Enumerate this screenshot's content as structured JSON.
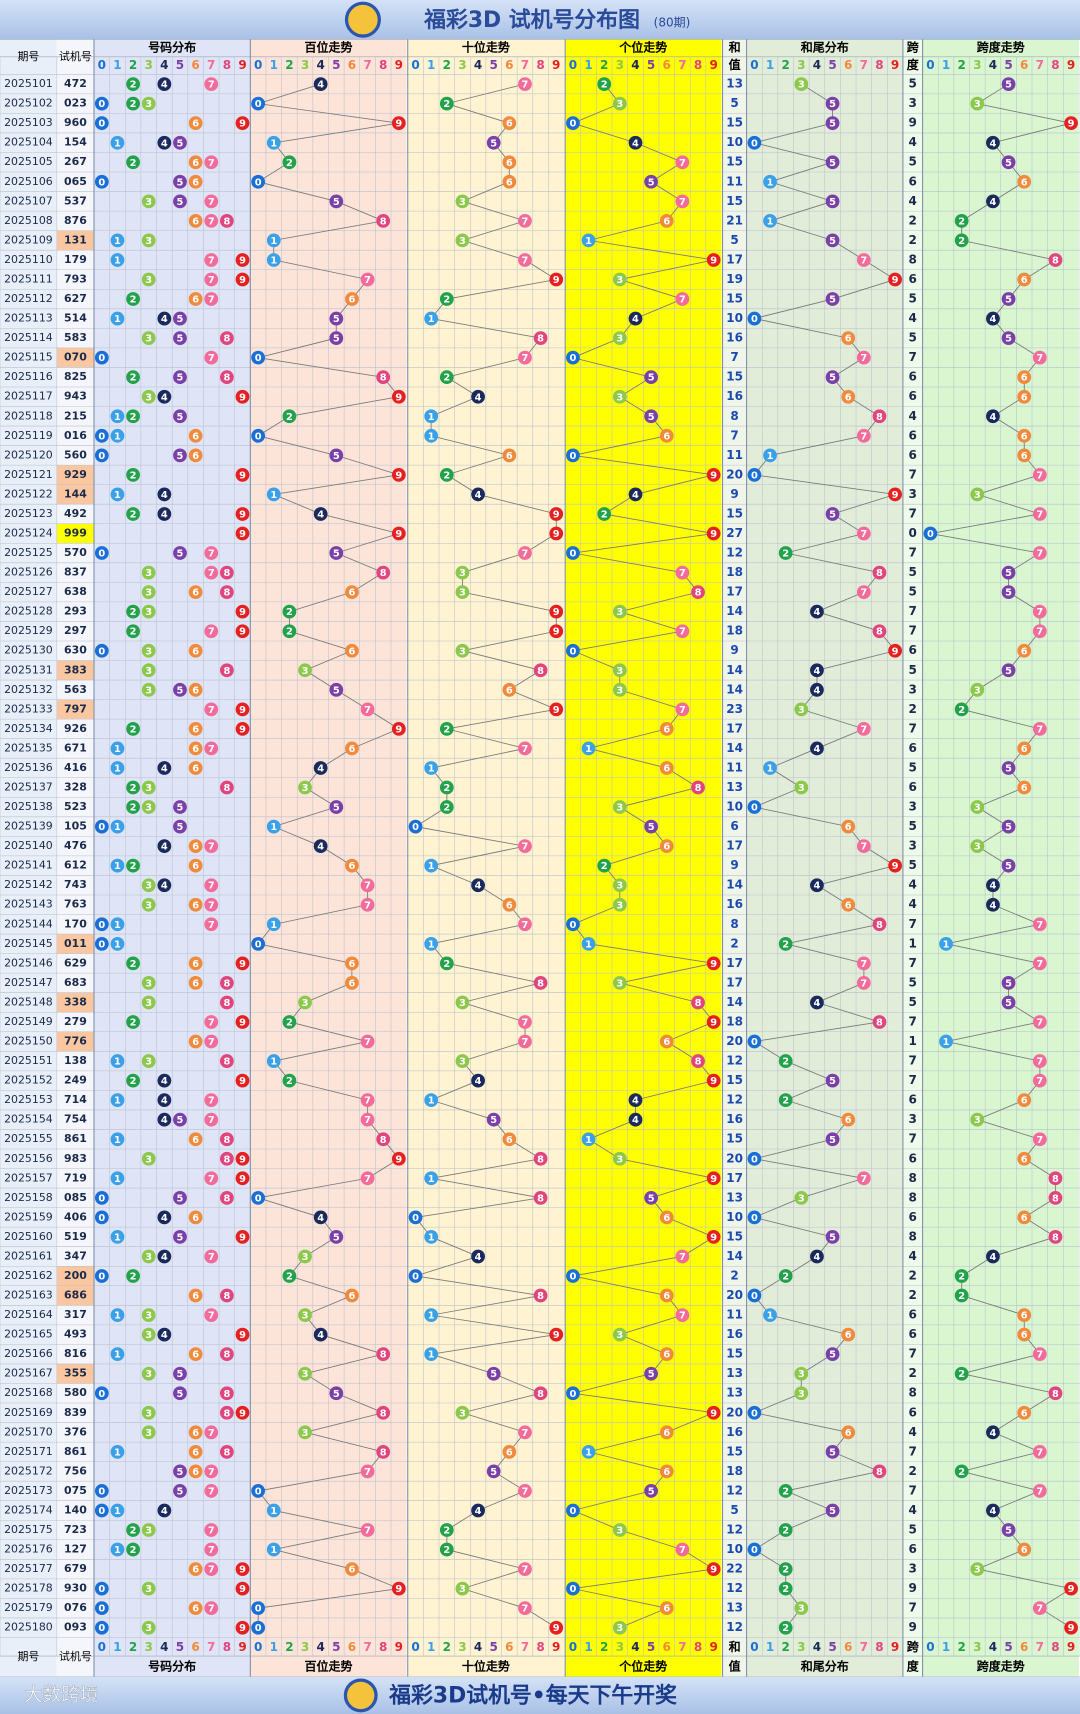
{
  "title": "福彩3D 试机号分布图",
  "subtitle": "(80期)",
  "columns": {
    "period": "期号",
    "number": "试机号",
    "groups": [
      "号码分布",
      "百位走势",
      "十位走势",
      "个位走势",
      "和尾分布",
      "跨度走势"
    ],
    "sum": [
      "和",
      "值"
    ],
    "span": [
      "跨",
      "度"
    ],
    "digits": [
      0,
      1,
      2,
      3,
      4,
      5,
      6,
      7,
      8,
      9
    ]
  },
  "digit_colors": [
    "#1a6fd6",
    "#3aa0e8",
    "#22a24a",
    "#8cc84b",
    "#1b2a5c",
    "#7b3fa8",
    "#f08a3c",
    "#f26b9a",
    "#e0457e",
    "#e52020"
  ],
  "rows": [
    [
      "2025101",
      "472",
      13,
      5
    ],
    [
      "2025102",
      "023",
      5,
      3
    ],
    [
      "2025103",
      "960",
      15,
      9
    ],
    [
      "2025104",
      "154",
      10,
      4
    ],
    [
      "2025105",
      "267",
      15,
      5
    ],
    [
      "2025106",
      "065",
      11,
      6
    ],
    [
      "2025107",
      "537",
      15,
      4
    ],
    [
      "2025108",
      "876",
      21,
      2
    ],
    [
      "2025109",
      "131",
      5,
      2
    ],
    [
      "2025110",
      "179",
      17,
      8
    ],
    [
      "2025111",
      "793",
      19,
      6
    ],
    [
      "2025112",
      "627",
      15,
      5
    ],
    [
      "2025113",
      "514",
      10,
      4
    ],
    [
      "2025114",
      "583",
      16,
      5
    ],
    [
      "2025115",
      "070",
      7,
      7
    ],
    [
      "2025116",
      "825",
      15,
      6
    ],
    [
      "2025117",
      "943",
      16,
      6
    ],
    [
      "2025118",
      "215",
      8,
      4
    ],
    [
      "2025119",
      "016",
      7,
      6
    ],
    [
      "2025120",
      "560",
      11,
      6
    ],
    [
      "2025121",
      "929",
      20,
      7
    ],
    [
      "2025122",
      "144",
      9,
      3
    ],
    [
      "2025123",
      "492",
      15,
      7
    ],
    [
      "2025124",
      "999",
      27,
      0
    ],
    [
      "2025125",
      "570",
      12,
      7
    ],
    [
      "2025126",
      "837",
      18,
      5
    ],
    [
      "2025127",
      "638",
      17,
      5
    ],
    [
      "2025128",
      "293",
      14,
      7
    ],
    [
      "2025129",
      "297",
      18,
      7
    ],
    [
      "2025130",
      "630",
      9,
      6
    ],
    [
      "2025131",
      "383",
      14,
      5
    ],
    [
      "2025132",
      "563",
      14,
      3
    ],
    [
      "2025133",
      "797",
      23,
      2
    ],
    [
      "2025134",
      "926",
      17,
      7
    ],
    [
      "2025135",
      "671",
      14,
      6
    ],
    [
      "2025136",
      "416",
      11,
      5
    ],
    [
      "2025137",
      "328",
      13,
      6
    ],
    [
      "2025138",
      "523",
      10,
      3
    ],
    [
      "2025139",
      "105",
      6,
      5
    ],
    [
      "2025140",
      "476",
      17,
      3
    ],
    [
      "2025141",
      "612",
      9,
      5
    ],
    [
      "2025142",
      "743",
      14,
      4
    ],
    [
      "2025143",
      "763",
      16,
      4
    ],
    [
      "2025144",
      "170",
      8,
      7
    ],
    [
      "2025145",
      "011",
      2,
      1
    ],
    [
      "2025146",
      "629",
      17,
      7
    ],
    [
      "2025147",
      "683",
      17,
      5
    ],
    [
      "2025148",
      "338",
      14,
      5
    ],
    [
      "2025149",
      "279",
      18,
      7
    ],
    [
      "2025150",
      "776",
      20,
      1
    ],
    [
      "2025151",
      "138",
      12,
      7
    ],
    [
      "2025152",
      "249",
      15,
      7
    ],
    [
      "2025153",
      "714",
      12,
      6
    ],
    [
      "2025154",
      "754",
      16,
      3
    ],
    [
      "2025155",
      "861",
      15,
      7
    ],
    [
      "2025156",
      "983",
      20,
      6
    ],
    [
      "2025157",
      "719",
      17,
      8
    ],
    [
      "2025158",
      "085",
      13,
      8
    ],
    [
      "2025159",
      "406",
      10,
      6
    ],
    [
      "2025160",
      "519",
      15,
      8
    ],
    [
      "2025161",
      "347",
      14,
      4
    ],
    [
      "2025162",
      "200",
      2,
      2
    ],
    [
      "2025163",
      "686",
      20,
      2
    ],
    [
      "2025164",
      "317",
      11,
      6
    ],
    [
      "2025165",
      "493",
      16,
      6
    ],
    [
      "2025166",
      "816",
      15,
      7
    ],
    [
      "2025167",
      "355",
      13,
      2
    ],
    [
      "2025168",
      "580",
      13,
      8
    ],
    [
      "2025169",
      "839",
      20,
      6
    ],
    [
      "2025170",
      "376",
      16,
      4
    ],
    [
      "2025171",
      "861",
      15,
      7
    ],
    [
      "2025172",
      "756",
      18,
      2
    ],
    [
      "2025173",
      "075",
      12,
      7
    ],
    [
      "2025174",
      "140",
      5,
      4
    ],
    [
      "2025175",
      "723",
      12,
      5
    ],
    [
      "2025176",
      "127",
      10,
      6
    ],
    [
      "2025177",
      "679",
      22,
      3
    ],
    [
      "2025178",
      "930",
      12,
      9
    ],
    [
      "2025179",
      "076",
      13,
      7
    ],
    [
      "2025180",
      "093",
      12,
      9
    ]
  ],
  "footer": "福彩3D试机号•每天下午开奖",
  "watermark": "大数跨境"
}
